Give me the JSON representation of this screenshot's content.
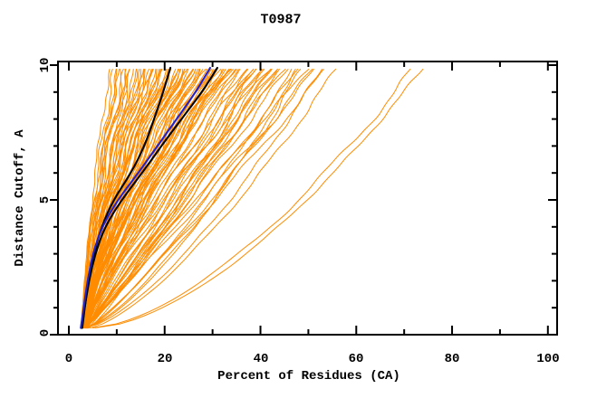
{
  "chart_data": {
    "type": "line",
    "title": "T0987",
    "xlabel": "Percent of Residues (CA)",
    "ylabel": "Distance Cutoff, A",
    "xlim": [
      0,
      100
    ],
    "ylim": [
      0,
      10
    ],
    "grid": false,
    "legend": "none",
    "frame": "full-box-with-mirrored-ticks",
    "x_ticks_major": [
      0,
      20,
      40,
      60,
      80,
      100
    ],
    "x_tick_labels": [
      "0",
      "20",
      "40",
      "60",
      "80",
      "100"
    ],
    "x_ticks_minor": [
      10,
      30,
      50,
      70,
      90
    ],
    "y_ticks_major": [
      0,
      5,
      10
    ],
    "y_tick_labels": [
      "0",
      "5",
      "10"
    ],
    "y_ticks_minor": [
      1,
      2,
      3,
      4,
      6,
      7,
      8,
      9
    ],
    "colors": {
      "background": "#ffffff",
      "axis": "#000000",
      "ensemble": "#ff8c00",
      "highlight_blue": "#2222cc",
      "highlight_black": "#000000"
    },
    "curve_y_range": [
      0.25,
      9.9
    ],
    "y_samples": [
      0.25,
      1,
      2,
      3,
      4,
      5,
      6,
      7,
      8,
      9,
      9.9
    ],
    "highlighted_series": [
      {
        "name": "black-model-1",
        "color_key": "highlight_black",
        "x": [
          2.8,
          3.3,
          4.1,
          5.2,
          6.8,
          9.3,
          13.0,
          15.8,
          17.8,
          19.7,
          21.2
        ]
      },
      {
        "name": "black-model-2",
        "color_key": "highlight_black",
        "x": [
          2.6,
          3.3,
          4.2,
          5.5,
          7.5,
          11.0,
          15.3,
          19.3,
          23.5,
          27.8,
          31.0
        ]
      },
      {
        "name": "blue-model",
        "color_key": "highlight_blue",
        "x": [
          2.5,
          3.1,
          3.9,
          5.0,
          6.9,
          10.2,
          14.5,
          18.5,
          22.5,
          26.5,
          29.5
        ]
      }
    ],
    "ensemble_curves": {
      "note": "~104 orange model curves estimated from pixels; each entry is [x_at_y0.25, x_at_y9.9, shape_exponent]; x(y)=x0+(xtop-x0)*t^e, t normalized cutoff.",
      "count": 104,
      "curve_params": [
        [
          3.0,
          8.6,
          1.55
        ],
        [
          3.0,
          9.5,
          1.5
        ],
        [
          3.4,
          10.2,
          1.4
        ],
        [
          2.8,
          10.8,
          1.6
        ],
        [
          3.7,
          11.3,
          1.35
        ],
        [
          3.1,
          11.9,
          1.55
        ],
        [
          4.0,
          12.4,
          1.3
        ],
        [
          2.7,
          12.9,
          1.65
        ],
        [
          3.5,
          13.3,
          1.45
        ],
        [
          3.2,
          13.8,
          1.5
        ],
        [
          3.9,
          14.2,
          1.35
        ],
        [
          2.9,
          14.6,
          1.6
        ],
        [
          3.6,
          15.0,
          1.4
        ],
        [
          3.3,
          12.1,
          1.7
        ],
        [
          3.8,
          10.0,
          1.5
        ],
        [
          3.0,
          15.4,
          1.5
        ],
        [
          3.6,
          15.8,
          1.3
        ],
        [
          2.8,
          16.2,
          1.45
        ],
        [
          4.1,
          16.6,
          1.2
        ],
        [
          3.3,
          17.0,
          1.55
        ],
        [
          3.7,
          17.4,
          1.35
        ],
        [
          2.9,
          17.8,
          1.5
        ],
        [
          3.4,
          18.2,
          1.25
        ],
        [
          4.0,
          18.6,
          1.4
        ],
        [
          3.1,
          19.0,
          1.55
        ],
        [
          3.8,
          19.4,
          1.3
        ],
        [
          2.7,
          19.8,
          1.45
        ],
        [
          3.5,
          20.2,
          1.2
        ],
        [
          3.2,
          20.6,
          1.5
        ],
        [
          3.9,
          21.0,
          1.35
        ],
        [
          2.8,
          21.4,
          1.55
        ],
        [
          3.6,
          21.8,
          1.25
        ],
        [
          3.0,
          22.2,
          1.4
        ],
        [
          4.2,
          22.6,
          1.3
        ],
        [
          3.3,
          23.0,
          1.5
        ],
        [
          3.7,
          23.4,
          1.2
        ],
        [
          2.9,
          23.8,
          1.45
        ],
        [
          3.5,
          24.2,
          1.35
        ],
        [
          3.1,
          24.6,
          1.55
        ],
        [
          3.8,
          25.0,
          1.25
        ],
        [
          3.4,
          16.9,
          1.6
        ],
        [
          3.0,
          18.9,
          1.15
        ],
        [
          3.6,
          20.9,
          1.6
        ],
        [
          3.2,
          22.9,
          1.15
        ],
        [
          3.9,
          24.4,
          1.5
        ],
        [
          3.1,
          25.4,
          1.4
        ],
        [
          3.7,
          25.8,
          1.15
        ],
        [
          2.8,
          26.3,
          1.35
        ],
        [
          3.4,
          26.8,
          1.05
        ],
        [
          4.0,
          27.2,
          1.45
        ],
        [
          3.0,
          27.7,
          1.2
        ],
        [
          3.6,
          28.1,
          1.4
        ],
        [
          3.2,
          28.6,
          1.1
        ],
        [
          3.8,
          29.0,
          1.3
        ],
        [
          2.9,
          29.5,
          1.45
        ],
        [
          3.5,
          30.0,
          1.15
        ],
        [
          3.1,
          30.4,
          1.35
        ],
        [
          3.7,
          30.9,
          1.05
        ],
        [
          3.3,
          31.3,
          1.4
        ],
        [
          4.1,
          31.8,
          1.2
        ],
        [
          2.8,
          32.2,
          1.35
        ],
        [
          3.4,
          32.7,
          1.1
        ],
        [
          3.0,
          33.1,
          1.45
        ],
        [
          3.6,
          33.6,
          1.25
        ],
        [
          3.2,
          34.0,
          1.4
        ],
        [
          3.9,
          34.5,
          1.05
        ],
        [
          2.9,
          35.0,
          1.3
        ],
        [
          3.5,
          27.0,
          1.0
        ],
        [
          3.1,
          29.8,
          1.25
        ],
        [
          3.8,
          31.0,
          1.0
        ],
        [
          3.3,
          33.0,
          1.15
        ],
        [
          4.0,
          34.2,
          1.3
        ],
        [
          3.0,
          26.0,
          1.25
        ],
        [
          3.2,
          35.5,
          1.15
        ],
        [
          3.8,
          36.1,
          0.95
        ],
        [
          2.9,
          36.8,
          1.1
        ],
        [
          3.5,
          37.4,
          0.9
        ],
        [
          3.1,
          38.1,
          1.2
        ],
        [
          3.7,
          38.7,
          1.0
        ],
        [
          3.3,
          39.4,
          1.15
        ],
        [
          4.0,
          40.0,
          0.9
        ],
        [
          2.8,
          40.7,
          1.1
        ],
        [
          3.4,
          41.3,
          0.95
        ],
        [
          3.0,
          42.0,
          1.2
        ],
        [
          3.6,
          42.6,
          1.0
        ],
        [
          3.2,
          43.3,
          0.85
        ],
        [
          3.9,
          43.9,
          1.15
        ],
        [
          2.9,
          44.6,
          0.95
        ],
        [
          3.5,
          45.2,
          1.05
        ],
        [
          4.2,
          39.0,
          0.85
        ],
        [
          3.1,
          41.8,
          0.85
        ],
        [
          3.3,
          46.0,
          0.95
        ],
        [
          3.9,
          47.0,
          0.8
        ],
        [
          3.0,
          48.0,
          0.9
        ],
        [
          3.6,
          49.0,
          0.75
        ],
        [
          3.2,
          50.0,
          1.0
        ],
        [
          3.8,
          51.0,
          0.85
        ],
        [
          2.9,
          52.0,
          0.95
        ],
        [
          3.5,
          53.0,
          0.7
        ],
        [
          4.1,
          54.0,
          0.9
        ],
        [
          3.4,
          47.8,
          0.7
        ],
        [
          4.5,
          56.0,
          0.72
        ],
        [
          5.0,
          72.0,
          0.63
        ],
        [
          5.5,
          74.0,
          0.62
        ]
      ]
    }
  }
}
